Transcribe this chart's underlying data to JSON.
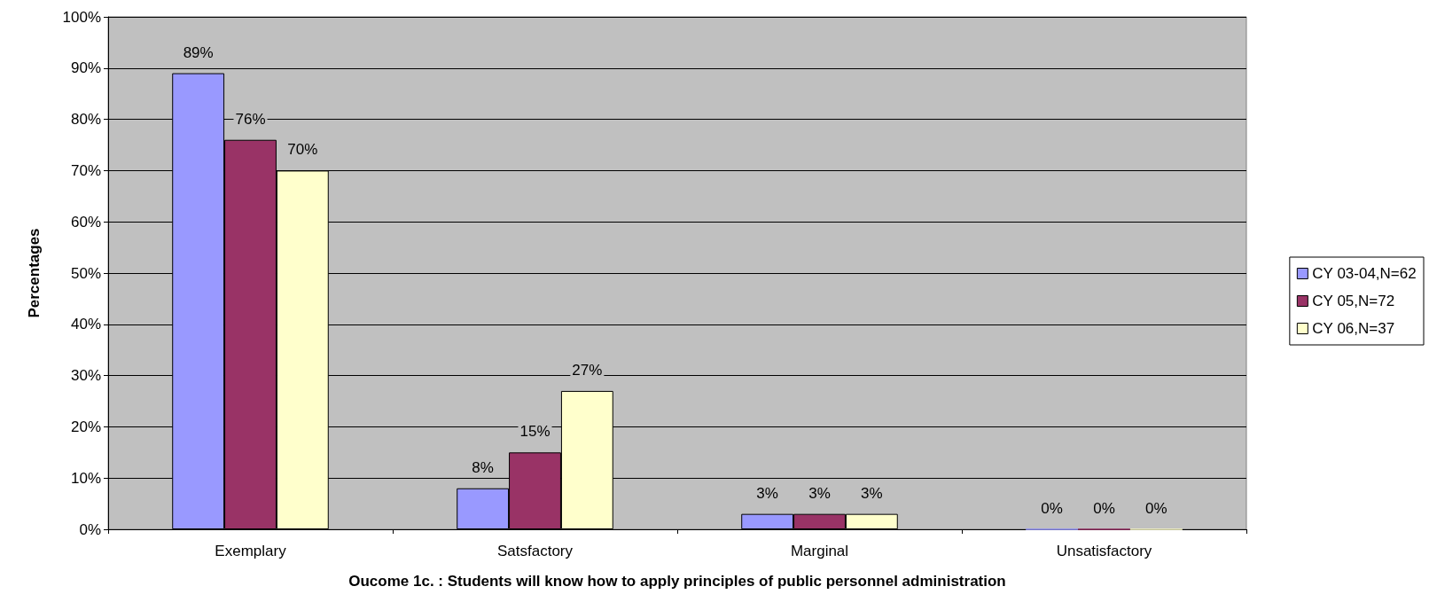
{
  "chart_data": {
    "type": "bar",
    "xlabel": "Oucome 1c. : Students will know how to apply principles of public personnel administration",
    "ylabel": "Percentages",
    "categories": [
      "Exemplary",
      "Satsfactory",
      "Marginal",
      "Unsatisfactory"
    ],
    "series": [
      {
        "name": "CY 03-04,N=62",
        "color": "#9999ff",
        "values": [
          89,
          8,
          3,
          0
        ],
        "value_labels": [
          "89%",
          "8%",
          "3%",
          "0%"
        ]
      },
      {
        "name": "CY 05,N=72",
        "color": "#993366",
        "values": [
          76,
          15,
          3,
          0
        ],
        "value_labels": [
          "76%",
          "15%",
          "3%",
          "0%"
        ]
      },
      {
        "name": "CY 06,N=37",
        "color": "#ffffcc",
        "values": [
          70,
          27,
          3,
          0
        ],
        "value_labels": [
          "70%",
          "27%",
          "3%",
          "0%"
        ]
      }
    ],
    "ylim": [
      0,
      100
    ],
    "yticks": [
      {
        "value": 0,
        "label": "0%"
      },
      {
        "value": 10,
        "label": "10%"
      },
      {
        "value": 20,
        "label": "20%"
      },
      {
        "value": 30,
        "label": "30%"
      },
      {
        "value": 40,
        "label": "40%"
      },
      {
        "value": 50,
        "label": "50%"
      },
      {
        "value": 60,
        "label": "60%"
      },
      {
        "value": 70,
        "label": "70%"
      },
      {
        "value": 80,
        "label": "80%"
      },
      {
        "value": 90,
        "label": "90%"
      },
      {
        "value": 100,
        "label": "100%"
      }
    ],
    "grid": "y",
    "legend": "right"
  }
}
